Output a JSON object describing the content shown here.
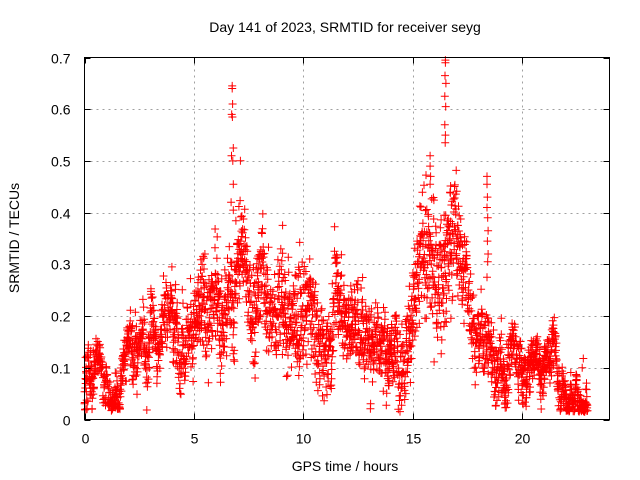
{
  "chart_data": {
    "type": "scatter",
    "title": "Day 141 of 2023, SRMTID for receiver seyg",
    "xlabel": "GPS time / hours",
    "ylabel": "SRMTID / TECUs",
    "xlim": [
      0,
      24
    ],
    "ylim": [
      0,
      0.7
    ],
    "xticks": [
      0,
      5,
      10,
      15,
      20
    ],
    "xtick_labels": [
      "0",
      "5",
      "10",
      "15",
      "20"
    ],
    "yticks": [
      0,
      0.1,
      0.2,
      0.3,
      0.4,
      0.5,
      0.6,
      0.7
    ],
    "ytick_labels": [
      "0",
      "0.1",
      "0.2",
      "0.3",
      "0.4",
      "0.5",
      "0.6",
      "0.7"
    ],
    "grid": true,
    "legend": "none",
    "marker": "+",
    "series_color": "#ff0000",
    "series": [
      {
        "name": "SRMTID",
        "envelope_description": "typical value and spread of the dense point cloud by hour",
        "envelope": [
          [
            0.0,
            0.07,
            0.03
          ],
          [
            0.5,
            0.06,
            0.025
          ],
          [
            1.0,
            0.05,
            0.02
          ],
          [
            1.5,
            0.06,
            0.025
          ],
          [
            2.0,
            0.11,
            0.03
          ],
          [
            2.5,
            0.11,
            0.04
          ],
          [
            3.0,
            0.14,
            0.03
          ],
          [
            3.5,
            0.15,
            0.035
          ],
          [
            4.0,
            0.19,
            0.04
          ],
          [
            4.5,
            0.2,
            0.05
          ],
          [
            5.0,
            0.22,
            0.05
          ],
          [
            5.5,
            0.21,
            0.06
          ],
          [
            6.0,
            0.24,
            0.06
          ],
          [
            6.5,
            0.26,
            0.06
          ],
          [
            7.0,
            0.27,
            0.07
          ],
          [
            7.5,
            0.25,
            0.06
          ],
          [
            8.0,
            0.27,
            0.06
          ],
          [
            8.5,
            0.2,
            0.06
          ],
          [
            9.0,
            0.24,
            0.07
          ],
          [
            9.5,
            0.22,
            0.06
          ],
          [
            10.0,
            0.19,
            0.06
          ],
          [
            10.5,
            0.18,
            0.06
          ],
          [
            11.0,
            0.19,
            0.06
          ],
          [
            11.5,
            0.17,
            0.05
          ],
          [
            12.0,
            0.18,
            0.05
          ],
          [
            12.5,
            0.17,
            0.05
          ],
          [
            13.0,
            0.18,
            0.05
          ],
          [
            13.5,
            0.19,
            0.05
          ],
          [
            14.0,
            0.19,
            0.05
          ],
          [
            14.5,
            0.2,
            0.05
          ],
          [
            15.0,
            0.26,
            0.07
          ],
          [
            15.5,
            0.28,
            0.07
          ],
          [
            16.0,
            0.29,
            0.08
          ],
          [
            16.5,
            0.3,
            0.08
          ],
          [
            17.0,
            0.33,
            0.08
          ],
          [
            17.3,
            0.25,
            0.06
          ],
          [
            17.6,
            0.21,
            0.05
          ],
          [
            18.0,
            0.16,
            0.04
          ],
          [
            18.5,
            0.15,
            0.04
          ],
          [
            19.0,
            0.14,
            0.04
          ],
          [
            19.5,
            0.11,
            0.035
          ],
          [
            20.0,
            0.09,
            0.03
          ],
          [
            20.5,
            0.09,
            0.03
          ],
          [
            21.0,
            0.1,
            0.03
          ],
          [
            21.5,
            0.09,
            0.03
          ],
          [
            22.0,
            0.06,
            0.02
          ],
          [
            22.5,
            0.06,
            0.02
          ],
          [
            23.0,
            0.06,
            0.025
          ]
        ],
        "spikes": [
          [
            6.75,
            0.645
          ],
          [
            6.75,
            0.64
          ],
          [
            6.77,
            0.61
          ],
          [
            6.73,
            0.59
          ],
          [
            6.76,
            0.585
          ],
          [
            6.8,
            0.525
          ],
          [
            6.72,
            0.51
          ],
          [
            6.78,
            0.5
          ],
          [
            6.8,
            0.455
          ],
          [
            6.7,
            0.42
          ],
          [
            6.8,
            0.405
          ],
          [
            16.5,
            0.695
          ],
          [
            16.5,
            0.69
          ],
          [
            16.48,
            0.665
          ],
          [
            16.52,
            0.65
          ],
          [
            16.47,
            0.625
          ],
          [
            16.51,
            0.605
          ],
          [
            16.47,
            0.57
          ],
          [
            16.5,
            0.55
          ],
          [
            16.49,
            0.535
          ],
          [
            15.8,
            0.51
          ],
          [
            15.8,
            0.49
          ],
          [
            15.82,
            0.47
          ],
          [
            15.8,
            0.455
          ],
          [
            18.4,
            0.47
          ],
          [
            18.4,
            0.455
          ],
          [
            18.42,
            0.43
          ],
          [
            18.4,
            0.41
          ],
          [
            18.43,
            0.39
          ],
          [
            18.45,
            0.365
          ],
          [
            18.42,
            0.345
          ],
          [
            18.45,
            0.32
          ],
          [
            18.43,
            0.305
          ],
          [
            18.4,
            0.275
          ],
          [
            20.4,
            0.14
          ],
          [
            20.45,
            0.13
          ],
          [
            20.4,
            0.115
          ],
          [
            22.8,
            0.118
          ],
          [
            22.75,
            0.1
          ],
          [
            0.05,
            0.12
          ],
          [
            0.1,
            0.02
          ],
          [
            0.15,
            0.035
          ]
        ]
      }
    ]
  }
}
